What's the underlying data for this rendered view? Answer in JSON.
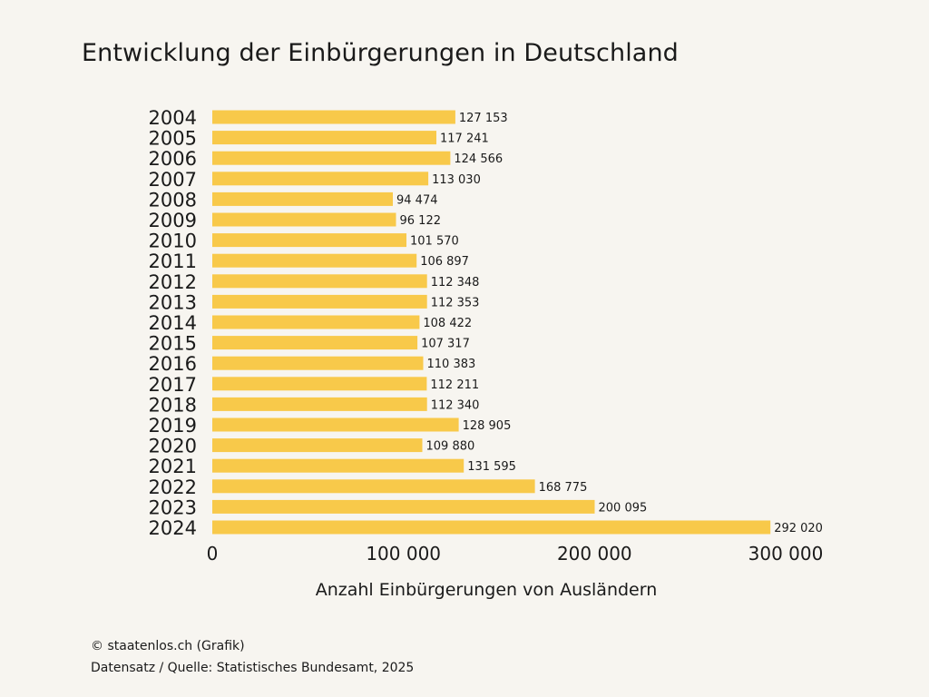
{
  "chart_data": {
    "type": "bar",
    "orientation": "horizontal",
    "title": "Entwicklung der Einbürgerungen in Deutschland",
    "xlabel": "Anzahl Einbürgerungen von Ausländern",
    "ylabel": "",
    "categories": [
      "2004",
      "2005",
      "2006",
      "2007",
      "2008",
      "2009",
      "2010",
      "2011",
      "2012",
      "2013",
      "2014",
      "2015",
      "2016",
      "2017",
      "2018",
      "2019",
      "2020",
      "2021",
      "2022",
      "2023",
      "2024"
    ],
    "values": [
      127153,
      117241,
      124566,
      113030,
      94474,
      96122,
      101570,
      106897,
      112348,
      112353,
      108422,
      107317,
      110383,
      112211,
      112340,
      128905,
      109880,
      131595,
      168775,
      200095,
      292020
    ],
    "value_labels": [
      "127 153",
      "117 241",
      "124 566",
      "113 030",
      "94 474",
      "96 122",
      "101 570",
      "106 897",
      "112 348",
      "112 353",
      "108 422",
      "107 317",
      "110 383",
      "112 211",
      "112 340",
      "128 905",
      "109 880",
      "131 595",
      "168 775",
      "200 095",
      "292 020"
    ],
    "xlim": [
      0,
      300000
    ],
    "xticks": [
      0,
      100000,
      200000,
      300000
    ],
    "xtick_labels": [
      "0",
      "100 000",
      "200 000",
      "300 000"
    ],
    "grid": false,
    "bar_color": "#f8c94a"
  },
  "footer": {
    "credit": "© staatenlos.ch (Grafik)",
    "source": "Datensatz / Quelle: Statistisches Bundesamt, 2025"
  },
  "colors": {
    "background": "#f7f5f0",
    "text": "#1a1a1a",
    "bar": "#f8c94a"
  }
}
